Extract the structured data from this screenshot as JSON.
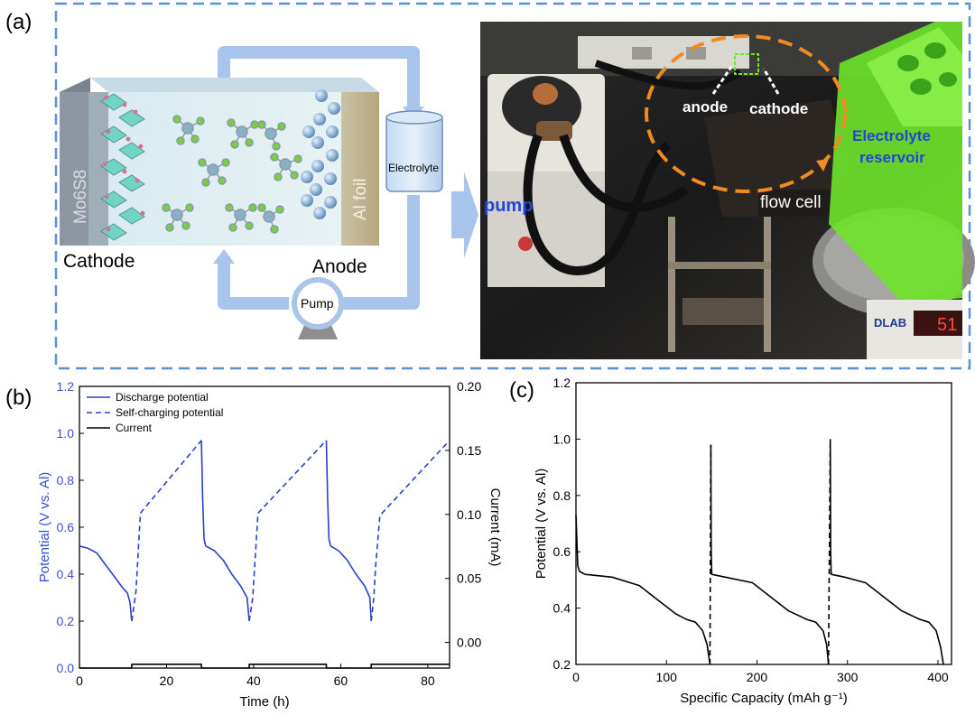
{
  "panels": {
    "a": {
      "label": "(a)",
      "schematic": {
        "cathode_material": "Mo6S8",
        "anode_material": "Al foil",
        "cathode_label": "Cathode",
        "anode_label": "Anode",
        "electrolyte_label": "Electrolyte",
        "pump_label": "Pump"
      },
      "photo": {
        "pump_label": "pump",
        "anode_label": "anode",
        "cathode_label": "cathode",
        "flow_cell_label": "flow cell",
        "reservoir_label_1": "Electrolyte",
        "reservoir_label_2": "reservoir",
        "display_brand": "DLAB",
        "display_readout": "51"
      },
      "colors": {
        "dashed_border": "#5b8fd6",
        "flow_tube": "#a9c4ea",
        "label_blue": "#2344d8",
        "reservoir_green": "#6ee62a",
        "circle_orange": "#f08a24"
      }
    },
    "b": {
      "label": "(b)"
    },
    "c": {
      "label": "(c)"
    }
  },
  "chart_data": [
    {
      "type": "line",
      "panel": "b",
      "xlabel": "Time (h)",
      "ylabel": "Potential (V vs. Al)",
      "ylabel_right": "Current (mA)",
      "xlim": [
        0,
        85
      ],
      "ylim": [
        0.0,
        1.2
      ],
      "ylim_right": [
        -0.02,
        0.2
      ],
      "xticks": [
        "0",
        "20",
        "40",
        "60",
        "80"
      ],
      "yticks": [
        "0.0",
        "0.2",
        "0.4",
        "0.6",
        "0.8",
        "1.0",
        "1.2"
      ],
      "yticks_right": [
        "0.00",
        "0.05",
        "0.10",
        "0.15",
        "0.20"
      ],
      "legend": "top-left",
      "series": [
        {
          "name": "Discharge potential",
          "style": "solid",
          "color": "#2b3fd1",
          "segments": [
            [
              [
                0,
                0.52
              ],
              [
                2,
                0.51
              ],
              [
                4,
                0.49
              ],
              [
                6,
                0.44
              ],
              [
                8,
                0.39
              ],
              [
                10,
                0.34
              ],
              [
                11,
                0.32
              ],
              [
                11.6,
                0.28
              ],
              [
                12,
                0.2
              ]
            ],
            [
              [
                28,
                0.97
              ],
              [
                28.3,
                0.72
              ],
              [
                28.6,
                0.55
              ],
              [
                29,
                0.52
              ],
              [
                31,
                0.5
              ],
              [
                33,
                0.46
              ],
              [
                35,
                0.4
              ],
              [
                37,
                0.35
              ],
              [
                38.5,
                0.3
              ],
              [
                39,
                0.2
              ]
            ],
            [
              [
                56.7,
                0.97
              ],
              [
                57,
                0.72
              ],
              [
                57.3,
                0.55
              ],
              [
                57.7,
                0.52
              ],
              [
                59.5,
                0.5
              ],
              [
                61.5,
                0.46
              ],
              [
                63.5,
                0.4
              ],
              [
                65.5,
                0.35
              ],
              [
                66.7,
                0.3
              ],
              [
                67,
                0.2
              ]
            ]
          ]
        },
        {
          "name": "Self-charging potential",
          "style": "dashed",
          "color": "#2b3fd1",
          "segments": [
            [
              [
                12,
                0.2
              ],
              [
                12.8,
                0.3
              ],
              [
                13,
                0.33
              ],
              [
                14,
                0.66
              ],
              [
                28,
                0.97
              ]
            ],
            [
              [
                39,
                0.2
              ],
              [
                39.8,
                0.3
              ],
              [
                40,
                0.36
              ],
              [
                41,
                0.66
              ],
              [
                56.7,
                0.97
              ]
            ],
            [
              [
                67,
                0.2
              ],
              [
                67.6,
                0.3
              ],
              [
                68,
                0.43
              ],
              [
                69,
                0.65
              ],
              [
                85,
                0.97
              ]
            ]
          ]
        },
        {
          "name": "Current",
          "style": "solid",
          "color": "#000000",
          "segments": [
            [
              [
                0,
                0.0
              ],
              [
                12,
                0.0
              ],
              [
                12,
                0.016
              ],
              [
                28,
                0.016
              ],
              [
                28,
                0.0
              ],
              [
                39,
                0.0
              ],
              [
                39,
                0.016
              ],
              [
                56.7,
                0.016
              ],
              [
                56.7,
                0.0
              ],
              [
                67,
                0.0
              ],
              [
                67,
                0.016
              ],
              [
                85,
                0.016
              ]
            ]
          ]
        }
      ]
    },
    {
      "type": "line",
      "panel": "c",
      "xlabel": "Specific Capacity (mAh g⁻¹)",
      "ylabel": "Potential (V vs. Al)",
      "xlim": [
        0,
        415
      ],
      "ylim": [
        0.2,
        1.2
      ],
      "xticks": [
        "0",
        "100",
        "200",
        "300",
        "400"
      ],
      "yticks": [
        "0.2",
        "0.4",
        "0.6",
        "0.8",
        "1.0",
        "1.2"
      ],
      "series": [
        {
          "style": "solid",
          "color": "#000000",
          "segments": [
            [
              [
                0,
                0.73
              ],
              [
                2,
                0.55
              ],
              [
                4,
                0.53
              ],
              [
                10,
                0.52
              ],
              [
                40,
                0.51
              ],
              [
                70,
                0.48
              ],
              [
                90,
                0.43
              ],
              [
                110,
                0.38
              ],
              [
                122,
                0.36
              ],
              [
                132,
                0.35
              ],
              [
                140,
                0.32
              ],
              [
                145,
                0.27
              ],
              [
                148,
                0.2
              ]
            ],
            [
              [
                149,
                0.98
              ],
              [
                149.4,
                0.6
              ],
              [
                150,
                0.52
              ],
              [
                165,
                0.51
              ],
              [
                195,
                0.49
              ],
              [
                215,
                0.44
              ],
              [
                235,
                0.39
              ],
              [
                255,
                0.36
              ],
              [
                265,
                0.35
              ],
              [
                273,
                0.32
              ],
              [
                277,
                0.27
              ],
              [
                279,
                0.2
              ]
            ],
            [
              [
                281,
                1.0
              ],
              [
                281.4,
                0.6
              ],
              [
                282,
                0.52
              ],
              [
                297,
                0.51
              ],
              [
                320,
                0.49
              ],
              [
                340,
                0.44
              ],
              [
                360,
                0.39
              ],
              [
                380,
                0.36
              ],
              [
                390,
                0.35
              ],
              [
                398,
                0.32
              ],
              [
                403,
                0.26
              ],
              [
                406,
                0.2
              ]
            ]
          ]
        },
        {
          "style": "dashed",
          "color": "#000000",
          "segments": [
            [
              [
                148,
                0.2
              ],
              [
                149,
                0.98
              ]
            ],
            [
              [
                279,
                0.2
              ],
              [
                281,
                1.0
              ]
            ]
          ]
        }
      ]
    }
  ]
}
